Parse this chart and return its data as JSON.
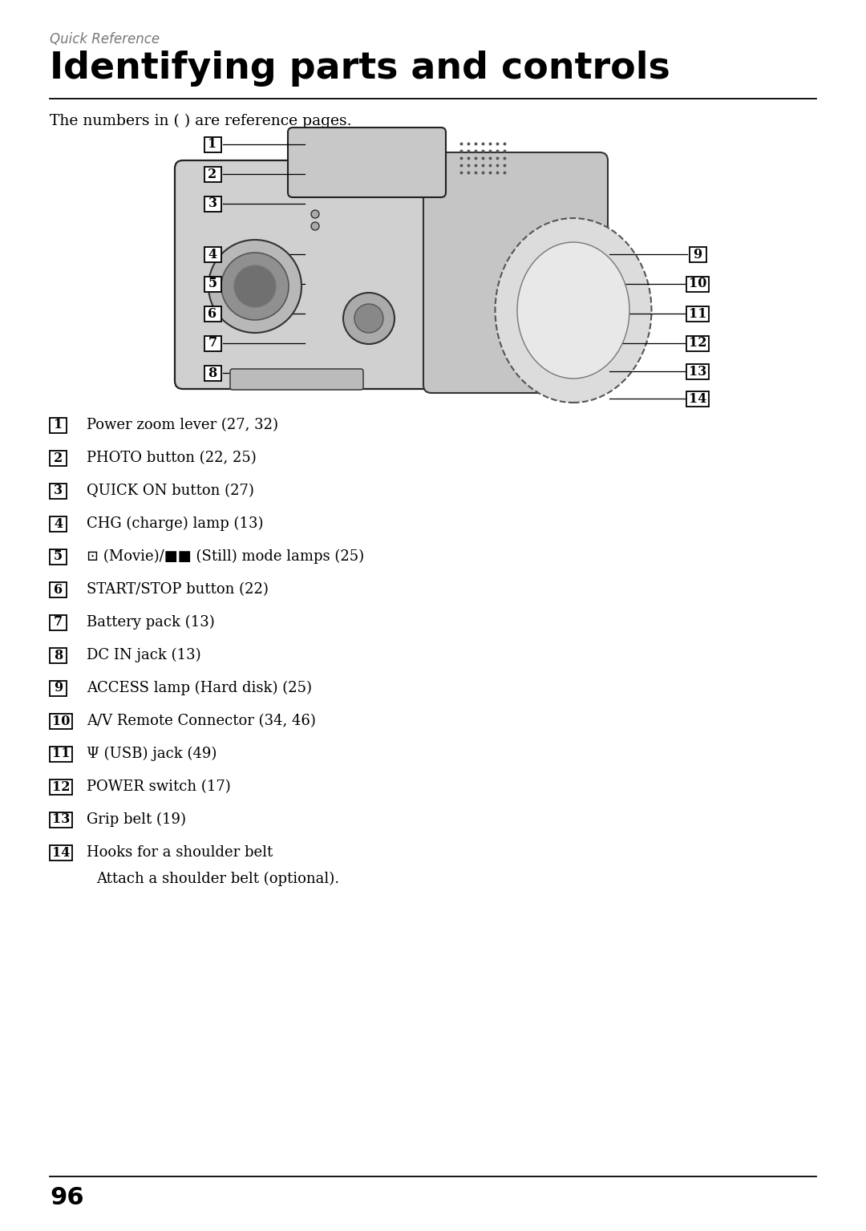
{
  "page_number": "96",
  "subtitle": "Quick Reference",
  "title": "Identifying parts and controls",
  "intro_text": "The numbers in ( ) are reference pages.",
  "background_color": "#ffffff",
  "text_color": "#000000",
  "items": [
    {
      "num": "1",
      "text": "Power zoom lever (27, 32)"
    },
    {
      "num": "2",
      "text": "PHOTO button (22, 25)"
    },
    {
      "num": "3",
      "text": "QUICK ON button (27)"
    },
    {
      "num": "4",
      "text": "CHG (charge) lamp (13)"
    },
    {
      "num": "5",
      "text": " (Movie)/ (Still) mode lamps (25)",
      "special": true
    },
    {
      "num": "6",
      "text": "START/STOP button (22)"
    },
    {
      "num": "7",
      "text": "Battery pack (13)"
    },
    {
      "num": "8",
      "text": "DC IN jack (13)"
    },
    {
      "num": "9",
      "text": "ACCESS lamp (Hard disk) (25)"
    },
    {
      "num": "10",
      "text": "A/V Remote Connector (34, 46)"
    },
    {
      "num": "11",
      "text": " (USB) jack (49)",
      "usb": true
    },
    {
      "num": "12",
      "text": "POWER switch (17)"
    },
    {
      "num": "13",
      "text": "Grip belt (19)"
    },
    {
      "num": "14",
      "text": "Hooks for a shoulder belt",
      "subtext": "Attach a shoulder belt (optional)."
    }
  ],
  "left_labels": [
    [
      "1",
      265,
      1355
    ],
    [
      "2",
      265,
      1318
    ],
    [
      "3",
      265,
      1281
    ],
    [
      "4",
      265,
      1218
    ],
    [
      "5",
      265,
      1181
    ],
    [
      "6",
      265,
      1144
    ],
    [
      "7",
      265,
      1107
    ],
    [
      "8",
      265,
      1070
    ]
  ],
  "right_labels": [
    [
      "9",
      870,
      1218
    ],
    [
      "10",
      870,
      1181
    ],
    [
      "11",
      870,
      1144
    ],
    [
      "12",
      870,
      1107
    ],
    [
      "13",
      870,
      1072
    ],
    [
      "14",
      870,
      1038
    ]
  ]
}
